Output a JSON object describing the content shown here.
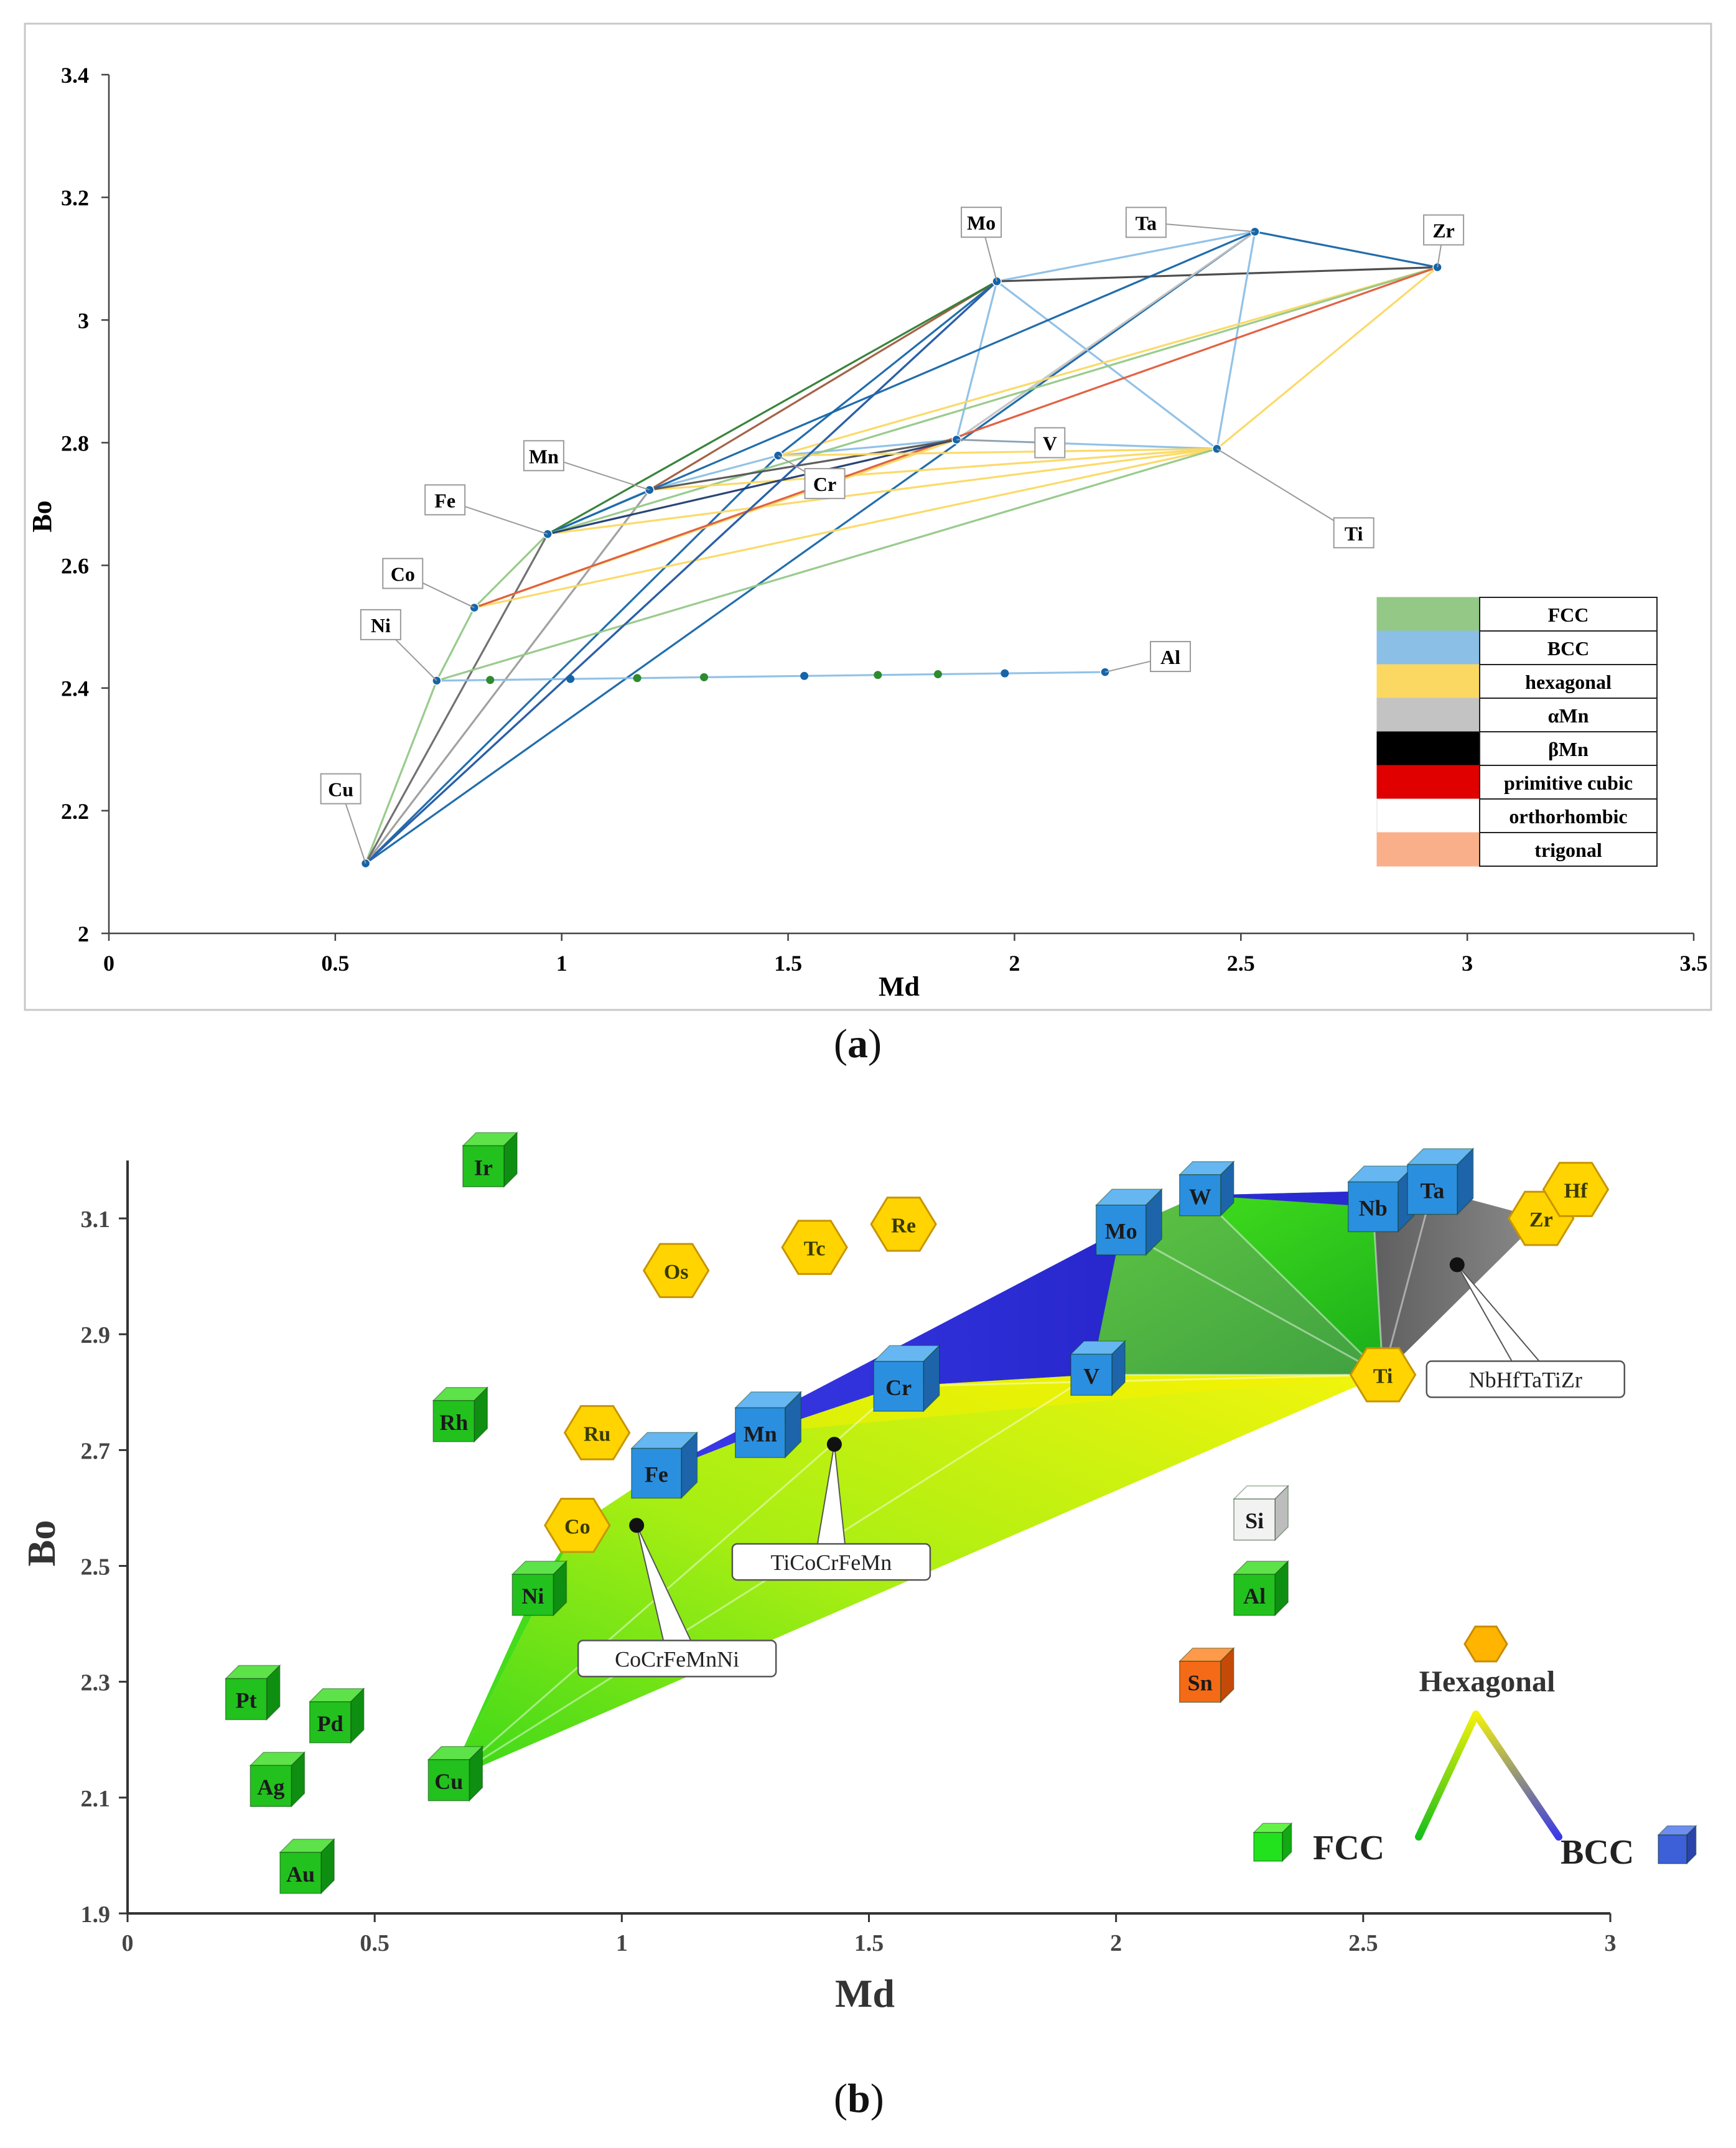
{
  "panel_a_caption": {
    "open": "(",
    "letter": "a",
    "close": ")"
  },
  "panel_b_caption": {
    "open": "(",
    "letter": "b",
    "close": ")"
  },
  "chart_data": [
    {
      "type": "scatter",
      "panel": "a",
      "xlabel": "Md",
      "ylabel": "Bo",
      "xlim": [
        0,
        3.5
      ],
      "ylim": [
        2,
        3.4
      ],
      "xticks": [
        "0",
        "0.5",
        "1",
        "1.5",
        "2",
        "2.5",
        "3",
        "3.5"
      ],
      "yticks": [
        "2",
        "2.2",
        "2.4",
        "2.6",
        "2.8",
        "3",
        "3.2",
        "3.4"
      ],
      "elements": [
        {
          "name": "Cu",
          "x": 0.567,
          "y": 2.114
        },
        {
          "name": "Ni",
          "x": 0.724,
          "y": 2.412
        },
        {
          "name": "Co",
          "x": 0.807,
          "y": 2.531
        },
        {
          "name": "Fe",
          "x": 0.969,
          "y": 2.651
        },
        {
          "name": "Mn",
          "x": 1.194,
          "y": 2.723
        },
        {
          "name": "Cr",
          "x": 1.478,
          "y": 2.779
        },
        {
          "name": "V",
          "x": 1.872,
          "y": 2.805
        },
        {
          "name": "Ti",
          "x": 2.447,
          "y": 2.79
        },
        {
          "name": "Mo",
          "x": 1.961,
          "y": 3.063
        },
        {
          "name": "Ta",
          "x": 2.531,
          "y": 3.144
        },
        {
          "name": "Zr",
          "x": 2.934,
          "y": 3.086
        },
        {
          "name": "Al",
          "x": 2.2,
          "y": 2.426
        }
      ],
      "legend": {
        "position": "bottom-right",
        "entries": [
          {
            "label": "FCC",
            "color": "#94c887"
          },
          {
            "label": "BCC",
            "color": "#8cbfe6"
          },
          {
            "label": "hexagonal",
            "color": "#fbd862"
          },
          {
            "label": "αMn",
            "color": "#c3c3c3"
          },
          {
            "label": "βMn",
            "color": "#000000"
          },
          {
            "label": "primitive cubic",
            "color": "#e00000"
          },
          {
            "label": "orthorhombic",
            "color": "#ffffff"
          },
          {
            "label": "trigonal",
            "color": "#f9b08a"
          }
        ]
      }
    },
    {
      "type": "scatter",
      "panel": "b",
      "xlabel": "Md",
      "ylabel": "Bo",
      "xlim": [
        0,
        3
      ],
      "ylim": [
        1.9,
        3.2
      ],
      "xticks": [
        "0",
        "0.5",
        "1",
        "1.5",
        "2",
        "2.5",
        "3"
      ],
      "yticks": [
        "1.9",
        "2.1",
        "2.3",
        "2.5",
        "2.7",
        "2.9",
        "3.1"
      ],
      "elements": [
        {
          "name": "Ir",
          "x": 0.72,
          "y": 3.19,
          "structure": "FCC"
        },
        {
          "name": "Rh",
          "x": 0.66,
          "y": 2.75,
          "structure": "FCC"
        },
        {
          "name": "Ni",
          "x": 0.82,
          "y": 2.45,
          "structure": "FCC"
        },
        {
          "name": "Cu",
          "x": 0.65,
          "y": 2.13,
          "structure": "FCC"
        },
        {
          "name": "Pt",
          "x": 0.24,
          "y": 2.27,
          "structure": "FCC"
        },
        {
          "name": "Pd",
          "x": 0.41,
          "y": 2.23,
          "structure": "FCC"
        },
        {
          "name": "Ag",
          "x": 0.29,
          "y": 2.12,
          "structure": "FCC"
        },
        {
          "name": "Au",
          "x": 0.35,
          "y": 1.97,
          "structure": "FCC"
        },
        {
          "name": "Al",
          "x": 2.28,
          "y": 2.45,
          "structure": "FCC"
        },
        {
          "name": "Si",
          "x": 2.28,
          "y": 2.58,
          "structure": "other"
        },
        {
          "name": "Sn",
          "x": 2.17,
          "y": 2.3,
          "structure": "other"
        },
        {
          "name": "Fe",
          "x": 1.07,
          "y": 2.66,
          "structure": "BCC"
        },
        {
          "name": "Mn",
          "x": 1.28,
          "y": 2.73,
          "structure": "BCC"
        },
        {
          "name": "Cr",
          "x": 1.56,
          "y": 2.81,
          "structure": "BCC"
        },
        {
          "name": "V",
          "x": 1.95,
          "y": 2.83,
          "structure": "BCC"
        },
        {
          "name": "Mo",
          "x": 2.01,
          "y": 3.08,
          "structure": "BCC"
        },
        {
          "name": "W",
          "x": 2.17,
          "y": 3.14,
          "structure": "BCC"
        },
        {
          "name": "Nb",
          "x": 2.52,
          "y": 3.12,
          "structure": "BCC"
        },
        {
          "name": "Ta",
          "x": 2.64,
          "y": 3.15,
          "structure": "BCC"
        },
        {
          "name": "Ru",
          "x": 0.95,
          "y": 2.73,
          "structure": "hexagonal"
        },
        {
          "name": "Co",
          "x": 0.91,
          "y": 2.57,
          "structure": "hexagonal"
        },
        {
          "name": "Os",
          "x": 1.11,
          "y": 3.01,
          "structure": "hexagonal"
        },
        {
          "name": "Tc",
          "x": 1.39,
          "y": 3.05,
          "structure": "hexagonal"
        },
        {
          "name": "Re",
          "x": 1.57,
          "y": 3.09,
          "structure": "hexagonal"
        },
        {
          "name": "Ti",
          "x": 2.54,
          "y": 2.83,
          "structure": "hexagonal"
        },
        {
          "name": "Zr",
          "x": 2.86,
          "y": 3.1,
          "structure": "hexagonal"
        },
        {
          "name": "Hf",
          "x": 2.93,
          "y": 3.15,
          "structure": "hexagonal"
        }
      ],
      "alloys": [
        {
          "name": "NbHfTaTiZr",
          "x": 2.69,
          "y": 3.02
        },
        {
          "name": "TiCoCrFeMn",
          "x": 1.43,
          "y": 2.71
        },
        {
          "name": "CoCrFeMnNi",
          "x": 1.03,
          "y": 2.57
        }
      ],
      "legend": {
        "position": "bottom-right",
        "hexagonal_label": "Hexagonal",
        "fcc_label": "FCC",
        "bcc_label": "BCC"
      }
    }
  ],
  "colors": {
    "fcc_green": "#17b81a",
    "bcc_blue": "#2b8fe0",
    "hex_yellow": "#ffd400",
    "line_blue": "#1565a8"
  }
}
